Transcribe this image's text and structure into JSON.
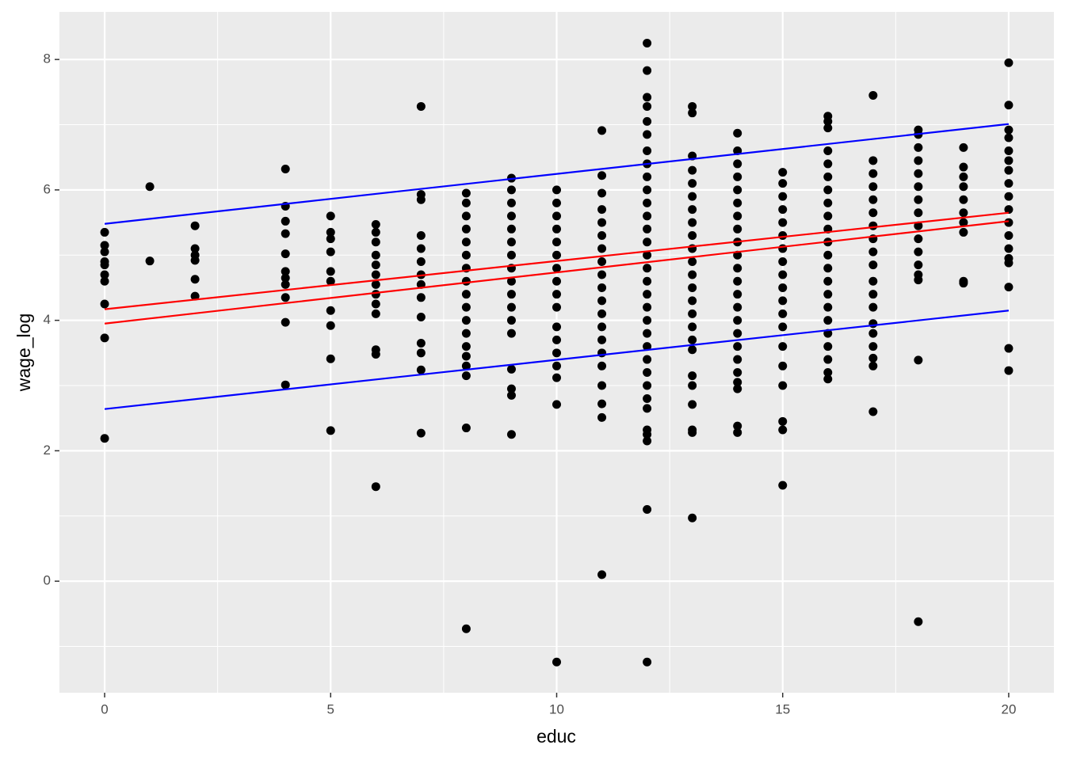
{
  "chart_data": {
    "type": "scatter",
    "x_label": "educ",
    "y_label": "wage_log",
    "xlim": [
      -1,
      21
    ],
    "ylim": [
      -1.71,
      8.73
    ],
    "xticks": [
      0,
      5,
      10,
      15,
      20
    ],
    "yticks": [
      0,
      2,
      4,
      6,
      8
    ],
    "grid": true,
    "color": "#000000",
    "x": [
      0,
      0,
      0,
      0,
      0,
      0,
      0,
      0,
      0,
      0,
      1,
      1,
      2,
      2,
      2,
      2,
      2,
      2,
      4,
      4,
      4,
      4,
      4,
      4,
      4,
      4,
      4,
      4,
      4,
      5,
      5,
      5,
      5,
      5,
      5,
      5,
      5,
      5,
      5,
      6,
      6,
      6,
      6,
      6,
      6,
      6,
      6,
      6,
      6,
      6,
      6,
      6,
      7,
      7,
      7,
      7,
      7,
      7,
      7,
      7,
      7,
      7,
      7,
      7,
      7,
      7,
      8,
      8,
      8,
      8,
      8,
      8,
      8,
      8,
      8,
      8,
      8,
      8,
      8,
      8,
      8,
      8,
      8,
      8,
      9,
      9,
      9,
      9,
      9,
      9,
      9,
      9,
      9,
      9,
      9,
      9,
      9,
      9,
      9,
      9,
      9,
      10,
      10,
      10,
      10,
      10,
      10,
      10,
      10,
      10,
      10,
      10,
      10,
      10,
      10,
      10,
      10,
      10,
      11,
      11,
      11,
      11,
      11,
      11,
      11,
      11,
      11,
      11,
      11,
      11,
      11,
      11,
      11,
      11,
      11,
      11,
      11,
      11,
      12,
      12,
      12,
      12,
      12,
      12,
      12,
      12,
      12,
      12,
      12,
      12,
      12,
      12,
      12,
      12,
      12,
      12,
      12,
      12,
      12,
      12,
      12,
      12,
      12,
      12,
      12,
      12,
      12,
      12,
      12,
      12,
      13,
      13,
      13,
      13,
      13,
      13,
      13,
      13,
      13,
      13,
      13,
      13,
      13,
      13,
      13,
      13,
      13,
      13,
      13,
      13,
      13,
      13,
      13,
      13,
      14,
      14,
      14,
      14,
      14,
      14,
      14,
      14,
      14,
      14,
      14,
      14,
      14,
      14,
      14,
      14,
      14,
      14,
      14,
      14,
      14,
      14,
      14,
      15,
      15,
      15,
      15,
      15,
      15,
      15,
      15,
      15,
      15,
      15,
      15,
      15,
      15,
      15,
      15,
      15,
      15,
      15,
      16,
      16,
      16,
      16,
      16,
      16,
      16,
      16,
      16,
      16,
      16,
      16,
      16,
      16,
      16,
      16,
      16,
      16,
      16,
      16,
      16,
      16,
      17,
      17,
      17,
      17,
      17,
      17,
      17,
      17,
      17,
      17,
      17,
      17,
      17,
      17,
      17,
      17,
      17,
      17,
      17,
      18,
      18,
      18,
      18,
      18,
      18,
      18,
      18,
      18,
      18,
      18,
      18,
      18,
      18,
      18,
      18,
      19,
      19,
      19,
      19,
      19,
      19,
      19,
      19,
      19,
      19,
      20,
      20,
      20,
      20,
      20,
      20,
      20,
      20,
      20,
      20,
      20,
      20,
      20,
      20,
      20,
      20,
      20,
      20
    ],
    "values": [
      5.35,
      5.15,
      5.05,
      4.9,
      4.85,
      4.7,
      4.6,
      4.25,
      3.73,
      2.19,
      6.05,
      4.91,
      5.45,
      5.1,
      5.0,
      4.92,
      4.63,
      4.37,
      6.32,
      5.75,
      5.52,
      5.33,
      5.02,
      4.75,
      4.65,
      4.55,
      4.35,
      3.97,
      3.01,
      5.6,
      5.35,
      5.25,
      5.05,
      4.75,
      4.6,
      4.15,
      3.92,
      3.41,
      2.31,
      5.47,
      5.35,
      5.2,
      5.0,
      4.85,
      4.7,
      4.55,
      4.4,
      4.25,
      4.1,
      3.55,
      3.48,
      1.45,
      7.28,
      5.93,
      5.85,
      5.3,
      5.1,
      4.9,
      4.7,
      4.55,
      4.35,
      4.05,
      3.65,
      3.5,
      3.24,
      2.27,
      5.95,
      5.8,
      5.6,
      5.4,
      5.2,
      5.0,
      4.8,
      4.6,
      4.4,
      4.2,
      4.0,
      3.8,
      3.6,
      3.45,
      3.3,
      3.15,
      2.35,
      -0.73,
      6.18,
      6.0,
      5.8,
      5.6,
      5.4,
      5.2,
      5.0,
      4.8,
      4.6,
      4.4,
      4.2,
      4.0,
      3.8,
      3.25,
      2.95,
      2.85,
      2.25,
      6.0,
      5.8,
      5.6,
      5.4,
      5.2,
      5.0,
      4.8,
      4.6,
      4.4,
      4.2,
      3.9,
      3.7,
      3.5,
      3.3,
      3.12,
      2.71,
      -1.24,
      6.91,
      6.22,
      5.95,
      5.7,
      5.5,
      5.3,
      5.1,
      4.9,
      4.7,
      4.5,
      4.3,
      4.1,
      3.9,
      3.7,
      3.5,
      3.3,
      3.0,
      2.72,
      2.51,
      0.1,
      8.25,
      7.83,
      7.42,
      7.28,
      7.05,
      6.85,
      6.6,
      6.4,
      6.2,
      6.0,
      5.8,
      5.6,
      5.4,
      5.2,
      5.0,
      4.8,
      4.6,
      4.4,
      4.2,
      4.0,
      3.8,
      3.6,
      3.4,
      3.2,
      3.0,
      2.8,
      2.65,
      2.32,
      2.25,
      2.15,
      1.1,
      -1.24,
      7.28,
      7.18,
      6.52,
      6.3,
      6.1,
      5.9,
      5.7,
      5.5,
      5.3,
      5.1,
      4.9,
      4.7,
      4.5,
      4.3,
      4.1,
      3.9,
      3.7,
      3.55,
      3.15,
      3.0,
      2.71,
      2.32,
      2.28,
      0.97,
      6.87,
      6.6,
      6.4,
      6.2,
      6.0,
      5.8,
      5.6,
      5.4,
      5.2,
      5.0,
      4.8,
      4.6,
      4.4,
      4.2,
      4.0,
      3.8,
      3.6,
      3.4,
      3.2,
      3.05,
      2.95,
      2.38,
      2.28,
      6.27,
      6.1,
      5.9,
      5.7,
      5.5,
      5.3,
      5.1,
      4.9,
      4.7,
      4.5,
      4.3,
      4.1,
      3.9,
      3.6,
      3.3,
      3.0,
      2.45,
      2.32,
      1.47,
      7.13,
      7.05,
      6.95,
      6.6,
      6.4,
      6.2,
      6.0,
      5.8,
      5.6,
      5.4,
      5.2,
      5.0,
      4.8,
      4.6,
      4.4,
      4.2,
      4.0,
      3.8,
      3.6,
      3.4,
      3.2,
      3.1,
      7.45,
      6.45,
      6.25,
      6.05,
      5.85,
      5.65,
      5.45,
      5.25,
      5.05,
      4.85,
      4.6,
      4.4,
      4.2,
      3.95,
      3.8,
      3.6,
      3.42,
      3.3,
      2.6,
      6.92,
      6.85,
      6.65,
      6.45,
      6.25,
      6.05,
      5.85,
      5.65,
      5.45,
      5.25,
      5.05,
      4.85,
      4.7,
      4.62,
      3.39,
      -0.62,
      6.65,
      6.35,
      6.2,
      6.05,
      5.85,
      5.65,
      5.5,
      5.35,
      4.6,
      4.57,
      7.95,
      7.3,
      6.92,
      6.8,
      6.6,
      6.45,
      6.3,
      6.1,
      5.9,
      5.7,
      5.5,
      5.3,
      5.1,
      4.95,
      4.88,
      4.51,
      3.57,
      3.23
    ],
    "lines": [
      {
        "color": "#0000ff",
        "x": [
          0,
          20
        ],
        "values": [
          5.48,
          7.01
        ]
      },
      {
        "color": "#0000ff",
        "x": [
          0,
          20
        ],
        "values": [
          2.64,
          4.15
        ]
      },
      {
        "color": "#ff0000",
        "x": [
          0,
          20
        ],
        "values": [
          4.17,
          5.65
        ]
      },
      {
        "color": "#ff0000",
        "x": [
          0,
          20
        ],
        "values": [
          3.95,
          5.52
        ]
      }
    ]
  }
}
